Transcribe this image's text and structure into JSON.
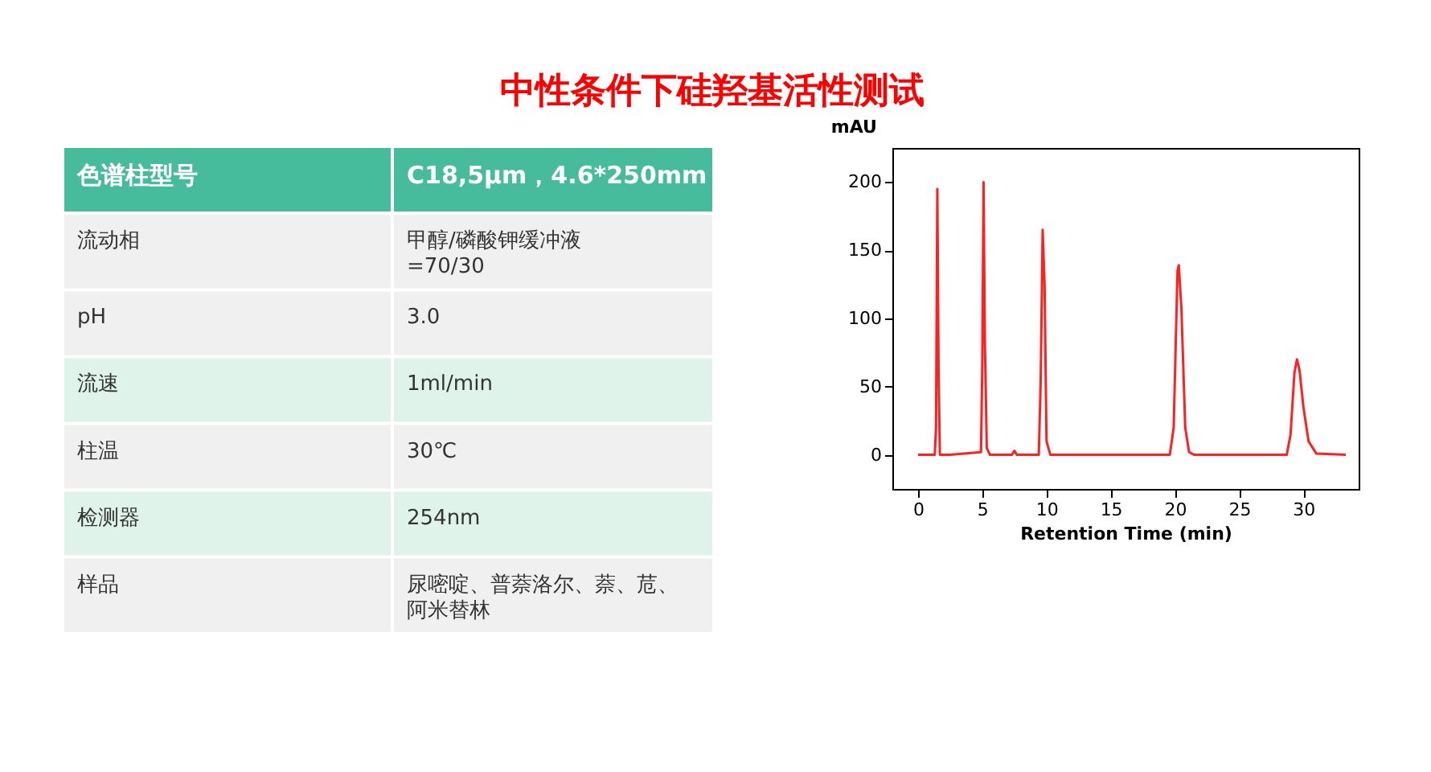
{
  "chart_data": [
    {
      "type": "other",
      "title": "中性条件下硅羟基活性测试",
      "annotations": [
        "色谱柱型号",
        "C18,5μm，4.6*250mm",
        "流动相",
        "甲醇/磷酸钾缓冲液\n=70/30",
        "pH",
        "3.0",
        "流速",
        "1ml/min",
        "柱温",
        "30℃",
        "检测器",
        "254nm",
        "样品",
        "尿嘧啶、普萘洛尔、萘、苊、阿米替林"
      ],
      "colors": [
        "#46bc9c",
        "#f0f0f0",
        "#f0f0f0",
        "#dff3ea",
        "#f0f0f0",
        "#dff3ea",
        "#f0f0f0"
      ]
    },
    {
      "type": "line",
      "xlabel": "Retention Time (min)",
      "ylabel": "mAU",
      "xlim": [
        -2,
        34.3
      ],
      "ylim": [
        -25,
        225
      ],
      "xticks": [
        0,
        5,
        10,
        15,
        20,
        25,
        30
      ],
      "yticks": [
        0,
        50,
        100,
        150,
        200
      ],
      "grid": false,
      "series": [
        {
          "color": "#ff2020",
          "x": [
            0,
            1.3,
            1.4,
            1.5,
            1.6,
            1.7,
            2.5,
            4.9,
            5.0,
            5.1,
            5.2,
            5.35,
            5.6,
            7.3,
            7.5,
            7.7,
            9.4,
            9.55,
            9.7,
            9.85,
            10.0,
            10.3,
            19.6,
            19.9,
            20.2,
            20.3,
            20.5,
            20.8,
            21.1,
            21.5,
            28.7,
            29.0,
            29.3,
            29.5,
            29.7,
            30.0,
            30.4,
            31.0,
            33.3
          ],
          "values": [
            0,
            0,
            20,
            195,
            60,
            0,
            0,
            2,
            65,
            200,
            85,
            5,
            0,
            0,
            3,
            0,
            0,
            55,
            165,
            125,
            10,
            0,
            0,
            20,
            135,
            139,
            108,
            20,
            2,
            0,
            0,
            15,
            60,
            70,
            62,
            35,
            10,
            1,
            0
          ]
        }
      ]
    }
  ]
}
